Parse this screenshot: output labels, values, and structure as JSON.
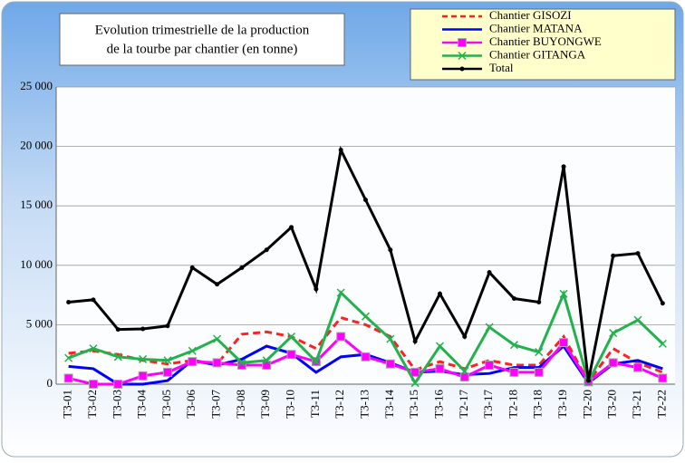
{
  "chart_data": {
    "type": "line",
    "title": [
      "Evolution trimestrielle de la production",
      "de la tourbe par chantier (en tonne)"
    ],
    "categories": [
      "T3-01",
      "T3-02",
      "T3-03",
      "T3-04",
      "T3-05",
      "T3-06",
      "T3-07",
      "T3-08",
      "T3-09",
      "T3-10",
      "T3-11",
      "T3-12",
      "T3-13",
      "T3-14",
      "T3-15",
      "T3-16",
      "T2-17",
      "T3-17",
      "T2-18",
      "T3-18",
      "T3-19",
      "T2-20",
      "T3-20",
      "T3-21",
      "T2-22"
    ],
    "series": [
      {
        "name": "Chantier GISOZI",
        "color": "#ff2020",
        "dashed": true,
        "marker": "none",
        "values": [
          2600,
          2800,
          2500,
          2000,
          1700,
          2000,
          1700,
          4200,
          4400,
          4000,
          3000,
          5600,
          5000,
          4000,
          1200,
          1900,
          1300,
          2000,
          1600,
          1600,
          4000,
          200,
          3000,
          1800,
          1000
        ]
      },
      {
        "name": "Chantier MATANA",
        "color": "#0000ff",
        "dashed": false,
        "marker": "none",
        "values": [
          1500,
          1300,
          0,
          0,
          300,
          2000,
          1600,
          2100,
          3200,
          2600,
          1000,
          2300,
          2500,
          1800,
          1000,
          1100,
          800,
          900,
          1400,
          1400,
          3200,
          100,
          1700,
          2000,
          1300
        ]
      },
      {
        "name": "Chantier BUYONGWE",
        "color": "#ff00ff",
        "dashed": false,
        "marker": "square",
        "values": [
          500,
          0,
          0,
          700,
          1000,
          1900,
          1800,
          1600,
          1600,
          2500,
          1900,
          4000,
          2300,
          1700,
          1000,
          1300,
          600,
          1600,
          1000,
          1000,
          3500,
          200,
          1800,
          1400,
          500
        ]
      },
      {
        "name": "Chantier GITANGA",
        "color": "#22b14c",
        "dashed": false,
        "marker": "x",
        "values": [
          2200,
          3000,
          2300,
          2100,
          2000,
          2800,
          3800,
          1800,
          2000,
          4000,
          1900,
          7700,
          5700,
          3800,
          100,
          3200,
          1100,
          4800,
          3300,
          2700,
          7600,
          200,
          4300,
          5400,
          3400
        ]
      },
      {
        "name": "Total",
        "color": "#000000",
        "dashed": false,
        "marker": "dot",
        "values": [
          6900,
          7100,
          4600,
          4650,
          4900,
          9800,
          8400,
          9800,
          11300,
          13200,
          8000,
          19700,
          15500,
          11300,
          3600,
          7600,
          4000,
          9400,
          7200,
          6900,
          18300,
          300,
          10800,
          11000,
          6800
        ]
      }
    ],
    "ylim": [
      0,
      25000
    ],
    "yticks": [
      0,
      {
        "value": 5000,
        "label": "5 000"
      },
      {
        "value": 10000,
        "label": "10 000"
      },
      {
        "value": 15000,
        "label": "15 000"
      },
      {
        "value": 20000,
        "label": "20 000"
      },
      {
        "value": 25000,
        "label": "25 000"
      }
    ],
    "grid": true,
    "legend": "top-right"
  }
}
